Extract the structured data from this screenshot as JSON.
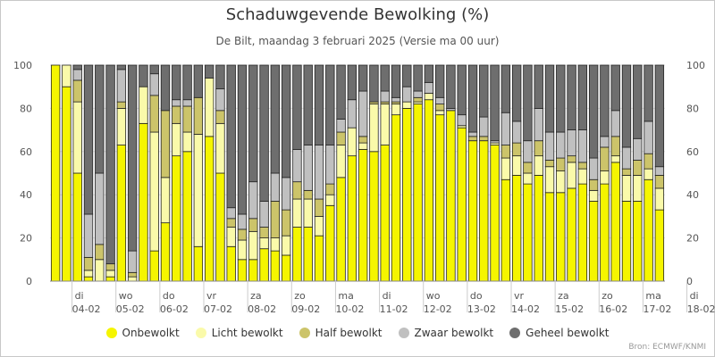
{
  "chart_data": {
    "type": "bar",
    "stacked": true,
    "title": "Schaduwgevende Bewolking (%)",
    "subtitle": "De Bilt, maandag 3 februari 2025 (Versie ma 00 uur)",
    "ylim": [
      0,
      100
    ],
    "y_ticks": [
      0,
      20,
      40,
      60,
      80,
      100
    ],
    "grid": true,
    "legend_position": "bottom",
    "source": "Bron: ECMWF/KNMI",
    "x_day_labels": [
      {
        "day": "di",
        "date": "04-02"
      },
      {
        "day": "wo",
        "date": "05-02"
      },
      {
        "day": "do",
        "date": "06-02"
      },
      {
        "day": "vr",
        "date": "07-02"
      },
      {
        "day": "za",
        "date": "08-02"
      },
      {
        "day": "zo",
        "date": "09-02"
      },
      {
        "day": "ma",
        "date": "10-02"
      },
      {
        "day": "di",
        "date": "11-02"
      },
      {
        "day": "wo",
        "date": "12-02"
      },
      {
        "day": "do",
        "date": "13-02"
      },
      {
        "day": "vr",
        "date": "14-02"
      },
      {
        "day": "za",
        "date": "15-02"
      },
      {
        "day": "zo",
        "date": "16-02"
      },
      {
        "day": "ma",
        "date": "17-02"
      },
      {
        "day": "di",
        "date": "18-02"
      }
    ],
    "series": [
      {
        "name": "Onbewolkt",
        "color": "#f5f500",
        "values": [
          100,
          90,
          50,
          2,
          0,
          2,
          63,
          0,
          73,
          14,
          27,
          58,
          60,
          16,
          67,
          50,
          16,
          10,
          10,
          15,
          14,
          12,
          25,
          25,
          21,
          35,
          48,
          58,
          61,
          60,
          63,
          77,
          80,
          82,
          84,
          77,
          79,
          71,
          65,
          65,
          63,
          47,
          49,
          45,
          49,
          41,
          41,
          43,
          45,
          37,
          45,
          55,
          37,
          37,
          47,
          33
        ]
      },
      {
        "name": "Licht bewolkt",
        "color": "#fafaaa",
        "values": [
          0,
          10,
          33,
          3,
          10,
          3,
          17,
          2,
          17,
          55,
          21,
          15,
          9,
          52,
          27,
          23,
          9,
          9,
          13,
          5,
          6,
          9,
          13,
          13,
          9,
          5,
          15,
          13,
          3,
          22,
          19,
          5,
          3,
          1,
          3,
          2,
          0,
          1,
          0,
          0,
          1,
          10,
          9,
          5,
          9,
          12,
          10,
          12,
          7,
          5,
          6,
          3,
          12,
          12,
          5,
          10
        ]
      },
      {
        "name": "Half bewolkt",
        "color": "#ccc46a",
        "values": [
          0,
          0,
          10,
          6,
          7,
          3,
          3,
          2,
          0,
          17,
          31,
          8,
          12,
          17,
          0,
          6,
          4,
          5,
          6,
          5,
          17,
          12,
          8,
          4,
          8,
          5,
          6,
          0,
          3,
          1,
          1,
          1,
          0,
          2,
          0,
          3,
          0,
          0,
          2,
          2,
          0,
          6,
          6,
          5,
          7,
          3,
          6,
          3,
          3,
          5,
          11,
          9,
          3,
          7,
          7,
          6
        ]
      },
      {
        "name": "Zwaar bewolkt",
        "color": "#c0c0c0",
        "values": [
          0,
          0,
          5,
          20,
          33,
          0,
          15,
          10,
          0,
          10,
          0,
          3,
          3,
          0,
          0,
          10,
          5,
          7,
          17,
          12,
          13,
          15,
          15,
          21,
          25,
          18,
          6,
          13,
          21,
          0,
          5,
          2,
          7,
          3,
          5,
          3,
          1,
          5,
          2,
          9,
          1,
          15,
          10,
          10,
          15,
          13,
          12,
          12,
          15,
          10,
          5,
          12,
          10,
          10,
          15,
          4
        ]
      },
      {
        "name": "Geheel bewolkt",
        "color": "#6e6e6e",
        "values": [
          0,
          0,
          2,
          69,
          50,
          92,
          2,
          86,
          10,
          4,
          21,
          16,
          16,
          15,
          6,
          11,
          66,
          69,
          54,
          63,
          50,
          52,
          39,
          37,
          37,
          37,
          25,
          16,
          12,
          17,
          12,
          15,
          10,
          12,
          8,
          15,
          20,
          23,
          31,
          24,
          35,
          22,
          26,
          35,
          20,
          31,
          31,
          30,
          30,
          43,
          33,
          21,
          38,
          34,
          26,
          47
        ]
      }
    ]
  }
}
